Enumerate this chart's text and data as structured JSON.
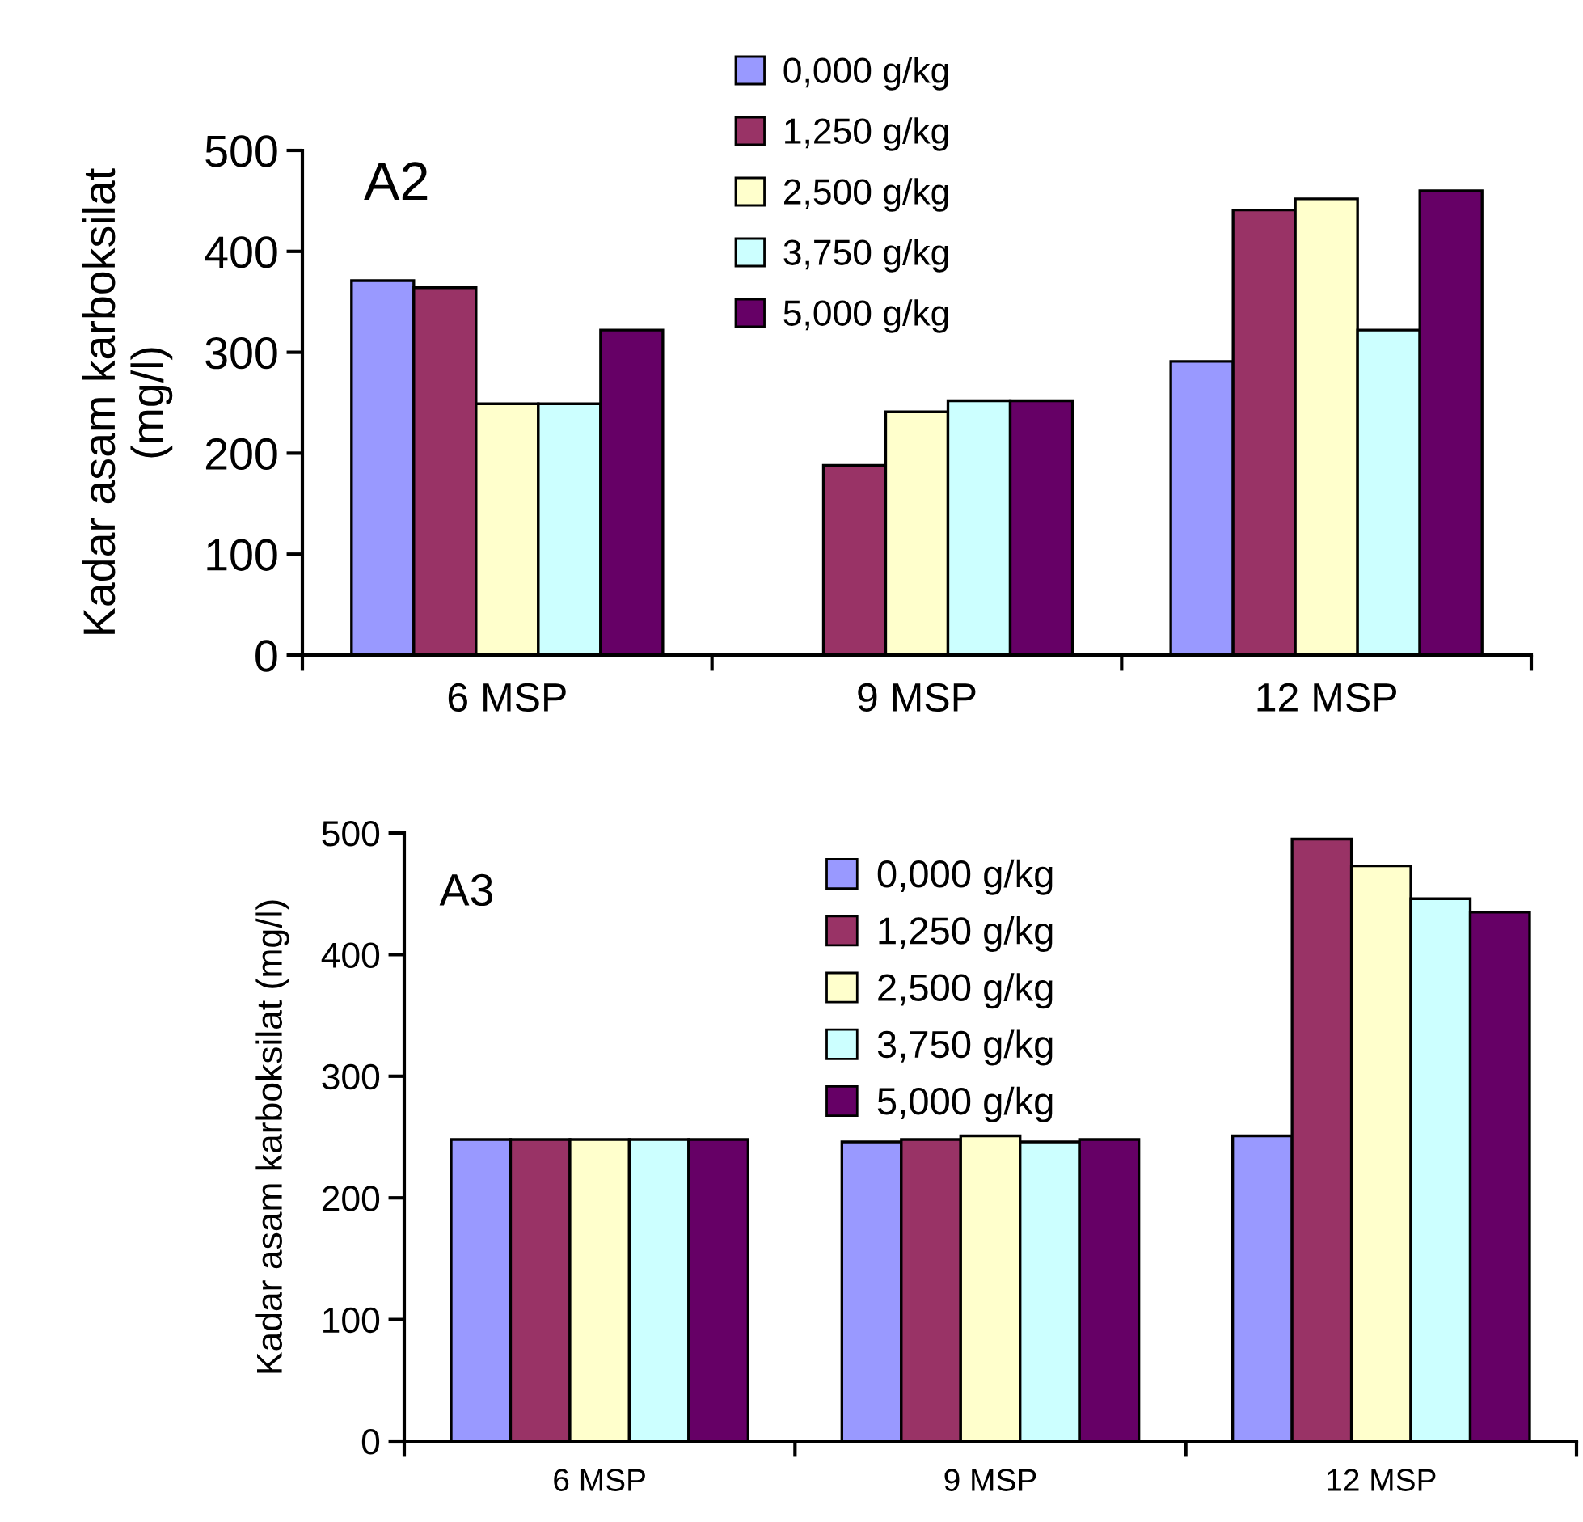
{
  "chart_data": [
    {
      "type": "bar",
      "ylabel": "Kadar asam karboksilat\n(mg/l)",
      "annotations": [
        "A2"
      ],
      "categories": [
        "6 MSP",
        "9 MSP",
        "12 MSP"
      ],
      "ylim": [
        0,
        500
      ],
      "yticks": [
        0,
        100,
        200,
        300,
        400,
        500
      ],
      "grid": false,
      "legend": "top",
      "series": [
        {
          "name": "0,000 g/kg",
          "color": "#9999ff",
          "values": [
            371,
            null,
            291
          ]
        },
        {
          "name": "1,250 g/kg",
          "color": "#993366",
          "values": [
            364,
            188,
            441
          ]
        },
        {
          "name": "2,500 g/kg",
          "color": "#ffffcc",
          "values": [
            249,
            241,
            452
          ]
        },
        {
          "name": "3,750 g/kg",
          "color": "#ccffff",
          "values": [
            249,
            252,
            322
          ]
        },
        {
          "name": "5,000 g/kg",
          "color": "#660066",
          "values": [
            322,
            252,
            460
          ]
        }
      ]
    },
    {
      "type": "bar",
      "ylabel": "Kadar asam karboksilat (mg/l)",
      "annotations": [
        "A3"
      ],
      "categories": [
        "6 MSP",
        "9 MSP",
        "12 MSP"
      ],
      "ylim": [
        0,
        500
      ],
      "yticks": [
        0,
        100,
        200,
        300,
        400,
        500
      ],
      "grid": false,
      "legend": "top",
      "series": [
        {
          "name": "0,000 g/kg",
          "color": "#9999ff",
          "values": [
            248,
            246,
            251
          ]
        },
        {
          "name": "1,250 g/kg",
          "color": "#993366",
          "values": [
            248,
            248,
            495
          ]
        },
        {
          "name": "2,500 g/kg",
          "color": "#ffffcc",
          "values": [
            248,
            251,
            473
          ]
        },
        {
          "name": "3,750 g/kg",
          "color": "#ccffff",
          "values": [
            248,
            246,
            446
          ]
        },
        {
          "name": "5,000 g/kg",
          "color": "#660066",
          "values": [
            248,
            248,
            435
          ]
        }
      ]
    }
  ]
}
